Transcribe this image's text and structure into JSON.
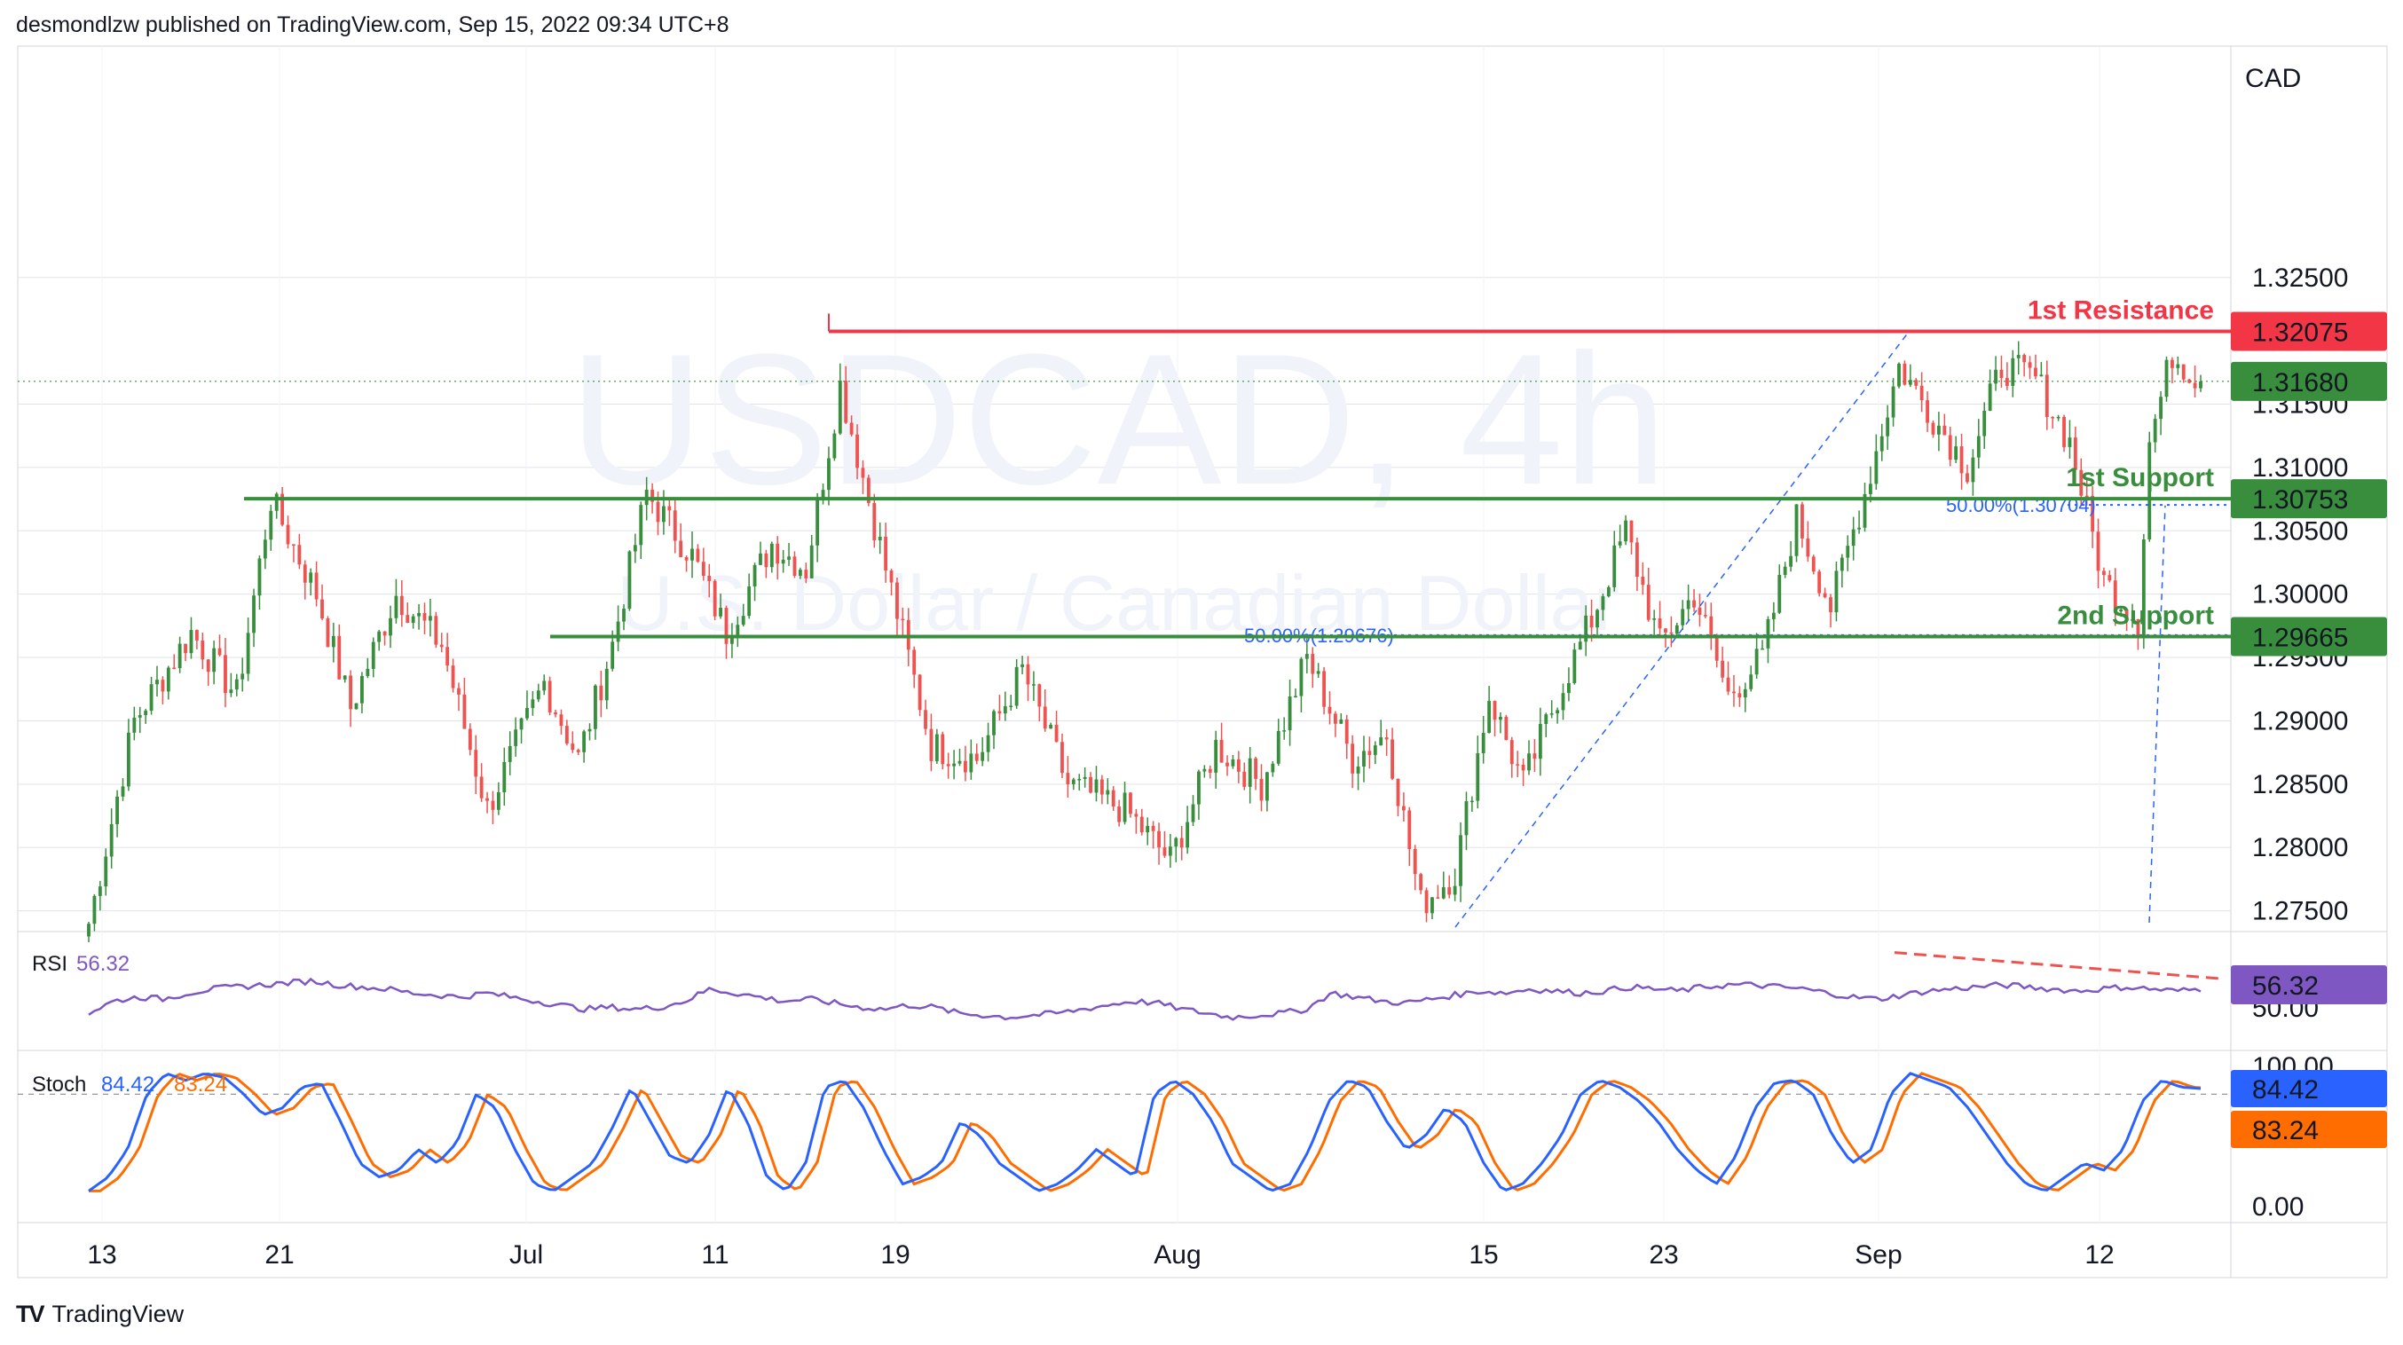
{
  "header": {
    "text": "desmondlzw published on TradingView.com, Sep 15, 2022 09:34 UTC+8"
  },
  "footer": {
    "brand": "TradingView",
    "logo_glyph": "TV"
  },
  "colors": {
    "up": "#388e3c",
    "down": "#ef5350",
    "resistance": "#f23645",
    "support": "#388e3c",
    "rsi": "#7e57c2",
    "stoch_k": "#2962ff",
    "stoch_d": "#ff6d00",
    "fib": "#2962ff",
    "grid": "#e0e3eb"
  },
  "chart_data": {
    "type": "candlestick",
    "symbol": "USDCAD, 4h",
    "description": "U.S. Dollar / Canadian Dollar",
    "currency": "CAD",
    "ylim": [
      1.2735,
      1.335
    ],
    "yticks": [
      "1.32500",
      "1.31500",
      "1.31000",
      "1.30500",
      "1.30000",
      "1.29500",
      "1.29000",
      "1.28500",
      "1.28000",
      "1.27500"
    ],
    "xticks": [
      "13",
      "21",
      "Jul",
      "11",
      "19",
      "Aug",
      "15",
      "23",
      "Sep",
      "12"
    ],
    "ohlc_key_points": [
      {
        "x": 0,
        "y": 1.274
      },
      {
        "x": 8,
        "y": 1.29
      },
      {
        "x": 18,
        "y": 1.297
      },
      {
        "x": 26,
        "y": 1.292
      },
      {
        "x": 32,
        "y": 1.3075
      },
      {
        "x": 40,
        "y": 1.3
      },
      {
        "x": 46,
        "y": 1.291
      },
      {
        "x": 54,
        "y": 1.3
      },
      {
        "x": 62,
        "y": 1.296
      },
      {
        "x": 70,
        "y": 1.283
      },
      {
        "x": 80,
        "y": 1.293
      },
      {
        "x": 86,
        "y": 1.287
      },
      {
        "x": 92,
        "y": 1.296
      },
      {
        "x": 98,
        "y": 1.308
      },
      {
        "x": 106,
        "y": 1.303
      },
      {
        "x": 112,
        "y": 1.297
      },
      {
        "x": 120,
        "y": 1.304
      },
      {
        "x": 126,
        "y": 1.302
      },
      {
        "x": 132,
        "y": 1.3165
      },
      {
        "x": 140,
        "y": 1.302
      },
      {
        "x": 148,
        "y": 1.288
      },
      {
        "x": 156,
        "y": 1.287
      },
      {
        "x": 164,
        "y": 1.294
      },
      {
        "x": 172,
        "y": 1.285
      },
      {
        "x": 182,
        "y": 1.283
      },
      {
        "x": 190,
        "y": 1.279
      },
      {
        "x": 198,
        "y": 1.288
      },
      {
        "x": 206,
        "y": 1.285
      },
      {
        "x": 214,
        "y": 1.295
      },
      {
        "x": 222,
        "y": 1.287
      },
      {
        "x": 228,
        "y": 1.289
      },
      {
        "x": 234,
        "y": 1.2755
      },
      {
        "x": 240,
        "y": 1.278
      },
      {
        "x": 246,
        "y": 1.292
      },
      {
        "x": 252,
        "y": 1.285
      },
      {
        "x": 258,
        "y": 1.292
      },
      {
        "x": 264,
        "y": 1.298
      },
      {
        "x": 270,
        "y": 1.305
      },
      {
        "x": 276,
        "y": 1.296
      },
      {
        "x": 282,
        "y": 1.3
      },
      {
        "x": 288,
        "y": 1.292
      },
      {
        "x": 294,
        "y": 1.295
      },
      {
        "x": 300,
        "y": 1.306
      },
      {
        "x": 306,
        "y": 1.299
      },
      {
        "x": 312,
        "y": 1.308
      },
      {
        "x": 318,
        "y": 1.318
      },
      {
        "x": 324,
        "y": 1.314
      },
      {
        "x": 330,
        "y": 1.31
      },
      {
        "x": 336,
        "y": 1.318
      },
      {
        "x": 342,
        "y": 1.317
      },
      {
        "x": 348,
        "y": 1.312
      },
      {
        "x": 354,
        "y": 1.301
      },
      {
        "x": 360,
        "y": 1.298
      },
      {
        "x": 362,
        "y": 1.312
      },
      {
        "x": 366,
        "y": 1.319
      },
      {
        "x": 371,
        "y": 1.3168
      }
    ],
    "levels": [
      {
        "name": "1st Resistance",
        "value": 1.32075,
        "label": "1.32075",
        "kind": "resistance"
      },
      {
        "name": "1st Support",
        "value": 1.30753,
        "label": "1.30753",
        "kind": "support"
      },
      {
        "name": "2nd Support",
        "value": 1.29665,
        "label": "1.29665",
        "kind": "support"
      }
    ],
    "last_price": {
      "value": 1.3168,
      "label": "1.31680"
    },
    "fib_labels": [
      {
        "text": "50.00%(1.30704)",
        "value": 1.30704
      },
      {
        "text": "50.00%(1.29676)",
        "value": 1.29676
      }
    ],
    "rsi": {
      "name": "RSI",
      "value_label": "56.32",
      "tick": "50.00",
      "points": [
        44,
        50,
        52,
        51,
        54,
        56,
        57,
        58,
        59,
        60,
        58,
        57,
        56,
        54,
        53,
        52,
        54,
        52,
        50,
        48,
        46,
        47,
        46,
        47,
        50,
        56,
        54,
        52,
        50,
        51,
        49,
        47,
        46,
        48,
        47,
        44,
        43,
        42,
        43,
        44,
        46,
        48,
        50,
        49,
        46,
        44,
        42,
        43,
        44,
        46,
        54,
        52,
        50,
        49,
        51,
        53,
        55,
        54,
        56,
        55,
        54,
        55,
        57,
        56,
        55,
        57,
        58,
        58,
        57,
        56,
        54,
        52,
        51,
        53,
        55,
        56,
        57,
        58,
        57,
        56,
        55,
        56,
        57,
        56,
        55,
        56
      ]
    },
    "stoch": {
      "name": "Stoch",
      "k_label": "84.42",
      "d_label": "83.24",
      "ticks": [
        "100.00",
        "0.00"
      ],
      "k": [
        10,
        20,
        40,
        80,
        95,
        90,
        95,
        92,
        80,
        65,
        70,
        85,
        88,
        60,
        30,
        20,
        25,
        40,
        30,
        45,
        80,
        70,
        40,
        15,
        10,
        20,
        30,
        55,
        85,
        60,
        35,
        30,
        50,
        85,
        60,
        20,
        10,
        30,
        85,
        90,
        70,
        40,
        15,
        20,
        30,
        60,
        50,
        30,
        20,
        10,
        15,
        25,
        40,
        30,
        20,
        80,
        90,
        80,
        60,
        30,
        20,
        10,
        15,
        40,
        75,
        90,
        85,
        60,
        40,
        50,
        70,
        60,
        30,
        10,
        15,
        30,
        50,
        80,
        90,
        85,
        75,
        60,
        40,
        25,
        15,
        35,
        70,
        88,
        90,
        80,
        50,
        30,
        40,
        80,
        95,
        90,
        85,
        70,
        50,
        30,
        15,
        10,
        20,
        30,
        25,
        40,
        75,
        90,
        85,
        84
      ]
    }
  }
}
